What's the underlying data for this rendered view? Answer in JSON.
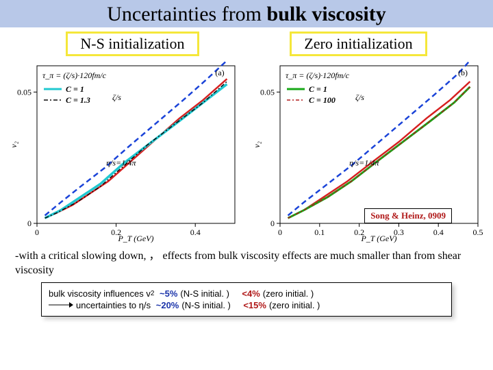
{
  "title": {
    "pre": "Uncertainties from ",
    "bold": "bulk viscosity"
  },
  "labels": {
    "left": "N-S initialization",
    "right": "Zero initialization"
  },
  "charts": {
    "left": {
      "panel_label": "(a)",
      "y_label": "v₂",
      "x_label": "P_T (GeV)",
      "x_ticks": [
        0,
        0.2,
        0.4
      ],
      "y_ticks": [
        0,
        0.05
      ],
      "ylim": [
        0,
        0.06
      ],
      "xlim": [
        0,
        0.5
      ],
      "curves": [
        {
          "color": "#d62020",
          "width": 2.5,
          "pts": [
            [
              0.02,
              0.002
            ],
            [
              0.05,
              0.004
            ],
            [
              0.09,
              0.007
            ],
            [
              0.12,
              0.01
            ],
            [
              0.18,
              0.016
            ],
            [
              0.24,
              0.024
            ],
            [
              0.3,
              0.032
            ],
            [
              0.36,
              0.04
            ],
            [
              0.42,
              0.047
            ],
            [
              0.48,
              0.055
            ]
          ]
        },
        {
          "color": "#1a43d8",
          "width": 2.5,
          "dash": "8 5",
          "pts": [
            [
              0.02,
              0.003
            ],
            [
              0.06,
              0.008
            ],
            [
              0.11,
              0.014
            ],
            [
              0.17,
              0.021
            ],
            [
              0.23,
              0.029
            ],
            [
              0.3,
              0.038
            ],
            [
              0.37,
              0.047
            ],
            [
              0.43,
              0.055
            ],
            [
              0.48,
              0.062
            ]
          ]
        },
        {
          "color": "#20c8d0",
          "width": 3.5,
          "pts": [
            [
              0.02,
              0.002
            ],
            [
              0.06,
              0.005
            ],
            [
              0.1,
              0.009
            ],
            [
              0.16,
              0.015
            ],
            [
              0.22,
              0.023
            ],
            [
              0.29,
              0.031
            ],
            [
              0.36,
              0.039
            ],
            [
              0.42,
              0.046
            ],
            [
              0.48,
              0.053
            ]
          ]
        },
        {
          "color": "#0a0a0a",
          "width": 1.5,
          "dash": "6 3 2 3",
          "pts": [
            [
              0.02,
              0.002
            ],
            [
              0.05,
              0.004
            ],
            [
              0.1,
              0.008
            ],
            [
              0.16,
              0.014
            ],
            [
              0.22,
              0.022
            ],
            [
              0.28,
              0.03
            ],
            [
              0.35,
              0.038
            ],
            [
              0.42,
              0.046
            ],
            [
              0.48,
              0.054
            ]
          ]
        }
      ],
      "formula": "τ_π = (ζ/s)·120fm/c",
      "legend": [
        {
          "color": "#20c8d0",
          "width": 3,
          "label": "C = 1",
          "bold": true
        },
        {
          "color": "#0a0a0a",
          "width": 1.5,
          "dash": "6 3 2 3",
          "label": "C = 1.3",
          "bold": true
        }
      ],
      "zeta_s": "ζ/s",
      "eta_note": "η/s=1/4π"
    },
    "right": {
      "panel_label": "(b)",
      "y_label": "v₂",
      "x_label": "P_T (GeV)",
      "x_ticks": [
        0,
        0.1,
        0.2,
        0.3,
        0.4,
        0.5
      ],
      "y_ticks": [
        0,
        0.05
      ],
      "ylim": [
        0,
        0.06
      ],
      "xlim": [
        0,
        0.5
      ],
      "curves": [
        {
          "color": "#d62020",
          "width": 2.5,
          "pts": [
            [
              0.02,
              0.002
            ],
            [
              0.06,
              0.005
            ],
            [
              0.11,
              0.01
            ],
            [
              0.17,
              0.016
            ],
            [
              0.23,
              0.023
            ],
            [
              0.3,
              0.031
            ],
            [
              0.37,
              0.04
            ],
            [
              0.43,
              0.047
            ],
            [
              0.48,
              0.054
            ]
          ]
        },
        {
          "color": "#1a43d8",
          "width": 2.5,
          "dash": "8 5",
          "pts": [
            [
              0.02,
              0.003
            ],
            [
              0.06,
              0.008
            ],
            [
              0.12,
              0.015
            ],
            [
              0.18,
              0.022
            ],
            [
              0.25,
              0.031
            ],
            [
              0.32,
              0.04
            ],
            [
              0.39,
              0.049
            ],
            [
              0.45,
              0.057
            ],
            [
              0.48,
              0.062
            ]
          ]
        },
        {
          "color": "#18a818",
          "width": 3.0,
          "pts": [
            [
              0.02,
              0.002
            ],
            [
              0.06,
              0.005
            ],
            [
              0.12,
              0.01
            ],
            [
              0.18,
              0.016
            ],
            [
              0.24,
              0.023
            ],
            [
              0.31,
              0.031
            ],
            [
              0.38,
              0.039
            ],
            [
              0.44,
              0.046
            ],
            [
              0.48,
              0.052
            ]
          ]
        },
        {
          "color": "#b01818",
          "width": 1.5,
          "dash": "5 3 2 3",
          "pts": [
            [
              0.02,
              0.002
            ],
            [
              0.06,
              0.005
            ],
            [
              0.12,
              0.01
            ],
            [
              0.18,
              0.016
            ],
            [
              0.24,
              0.023
            ],
            [
              0.31,
              0.031
            ],
            [
              0.38,
              0.039
            ],
            [
              0.44,
              0.046
            ],
            [
              0.48,
              0.052
            ]
          ]
        }
      ],
      "formula": "τ_π = (ζ/s)·120fm/c",
      "legend": [
        {
          "color": "#18a818",
          "width": 3,
          "label": "C = 1",
          "bold": true
        },
        {
          "color": "#b01818",
          "width": 1.5,
          "dash": "5 3 2 3",
          "label": "C = 100",
          "bold": true
        }
      ],
      "zeta_s": "ζ/s",
      "eta_note": "η/s=1/4π"
    }
  },
  "citation": "Song & Heinz, 0909",
  "note": {
    "pre": "-with a critical slowing down,      ， effects from bulk viscosity effects are much smaller than from shear viscosity"
  },
  "bottom": {
    "line1": {
      "pre": "bulk viscosity influences v",
      "sub": "2",
      "p1": "~5%",
      "a1": "(N-S initial. )",
      "p2": "<4%",
      "a2": "(zero initial. )"
    },
    "line2": {
      "pre": "uncertainties to η/s",
      "p1": "~20%",
      "a1": "(N-S initial. )",
      "p2": "<15%",
      "a2": "(zero initial. )"
    }
  }
}
